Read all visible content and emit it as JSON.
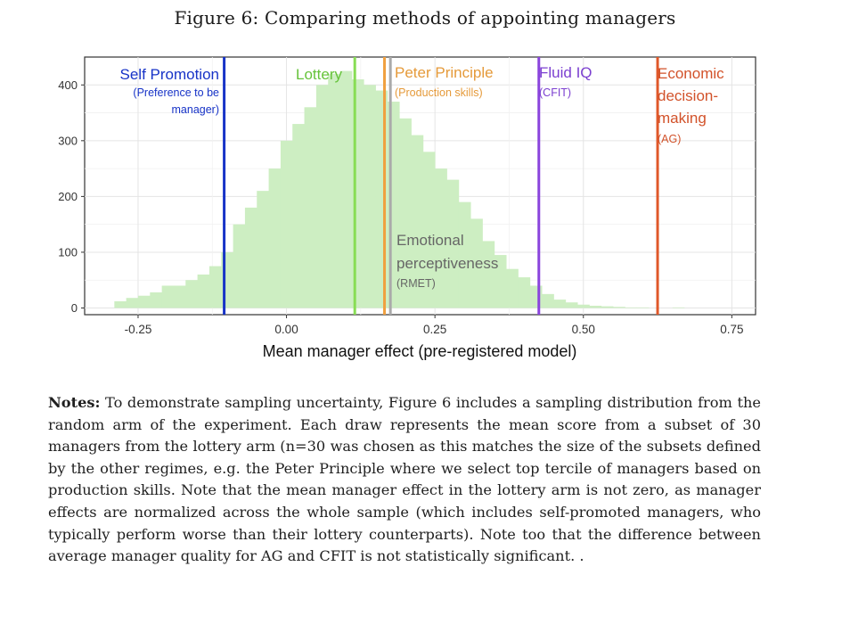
{
  "title": "Figure 6: Comparing methods of appointing managers",
  "chart_data": {
    "type": "bar",
    "xlabel": "Mean manager effect (pre-registered model)",
    "ylabel": "",
    "xlim": [
      -0.34,
      0.79
    ],
    "ylim": [
      -12,
      450
    ],
    "x_ticks": [
      -0.25,
      0.0,
      0.25,
      0.5,
      0.75
    ],
    "x_tick_labels": [
      "-0.25",
      "0.00",
      "0.25",
      "0.50",
      "0.75"
    ],
    "y_ticks": [
      0,
      100,
      200,
      300,
      400
    ],
    "y_tick_labels": [
      "0",
      "100",
      "200",
      "300",
      "400"
    ],
    "grid": true,
    "histogram": {
      "color": "#cdeec2",
      "bin_width": 0.02,
      "bin_starts": [
        -0.29,
        -0.27,
        -0.25,
        -0.23,
        -0.21,
        -0.19,
        -0.17,
        -0.15,
        -0.13,
        -0.11,
        -0.09,
        -0.07,
        -0.05,
        -0.03,
        -0.01,
        0.01,
        0.03,
        0.05,
        0.07,
        0.09,
        0.11,
        0.13,
        0.15,
        0.17,
        0.19,
        0.21,
        0.23,
        0.25,
        0.27,
        0.29,
        0.31,
        0.33,
        0.35,
        0.37,
        0.39,
        0.41,
        0.43,
        0.45,
        0.47,
        0.49,
        0.51,
        0.53,
        0.55,
        0.57,
        0.59,
        0.61,
        0.63,
        0.65
      ],
      "counts": [
        12,
        18,
        22,
        28,
        40,
        40,
        50,
        60,
        75,
        100,
        150,
        180,
        210,
        250,
        300,
        330,
        360,
        400,
        420,
        425,
        410,
        400,
        390,
        370,
        340,
        310,
        280,
        250,
        230,
        190,
        160,
        120,
        95,
        70,
        55,
        40,
        25,
        15,
        10,
        6,
        4,
        3,
        2,
        1,
        1,
        0,
        0,
        1
      ]
    },
    "reference_lines": [
      {
        "name": "Self Promotion",
        "sub": "(Preference to be manager)",
        "x": -0.105,
        "color": "#1733c7"
      },
      {
        "name": "Lottery",
        "sub": "",
        "x": 0.115,
        "color": "#88dd55"
      },
      {
        "name": "Peter Principle",
        "sub": "(Production skills)",
        "x": 0.165,
        "color": "#f0a040"
      },
      {
        "name": "Emotional perceptiveness",
        "sub": "(RMET)",
        "x": 0.175,
        "color": "#aaaaaa"
      },
      {
        "name": "Fluid IQ",
        "sub": "(CFIT)",
        "x": 0.425,
        "color": "#8a44dd"
      },
      {
        "name": "Economic decision-making",
        "sub": "(AG)",
        "x": 0.625,
        "color": "#e0582a"
      }
    ]
  },
  "notes": {
    "label": "Notes:",
    "text": " To demonstrate sampling uncertainty, Figure 6 includes a sampling distribution from the random arm of the experiment. Each draw represents the mean score from a subset of 30 managers from the lottery arm (n=30 was chosen as this matches the size of the subsets defined by the other regimes, e.g. the Peter Principle where we select top tercile of managers based on production skills. Note that the mean manager effect in the lottery arm is not zero, as manager effects are normalized across the whole sample (which includes self-promoted managers, who typically perform worse than their lottery counterparts). Note too that the difference between average manager quality for AG and CFIT is not statistically significant. ."
  },
  "annotations": {
    "self_promotion_title": "Self Promotion",
    "self_promotion_sub1": "(Preference to be",
    "self_promotion_sub2": "manager)",
    "lottery_title": "Lottery",
    "peter_title": "Peter Principle",
    "peter_sub": "(Production skills)",
    "fluid_title": "Fluid IQ",
    "fluid_sub": "(CFIT)",
    "econ_title1": "Economic",
    "econ_title2": "decision-",
    "econ_title3": "making",
    "econ_sub": "(AG)",
    "emotional_title1": "Emotional",
    "emotional_title2": "perceptiveness",
    "emotional_sub": "(RMET)"
  }
}
